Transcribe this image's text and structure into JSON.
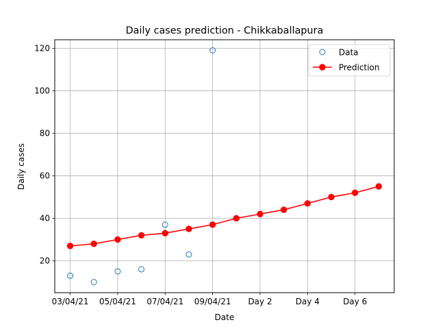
{
  "chart_data": {
    "type": "scatter",
    "title": "Daily cases prediction - Chikkaballapura",
    "xlabel": "Date",
    "ylabel": "Daily cases",
    "x_index_range": [
      -0.65,
      13.65
    ],
    "ylim": [
      5,
      124
    ],
    "grid": true,
    "legend_position": "top-right",
    "x_ticks": [
      {
        "index": 0,
        "label": "03/04/21"
      },
      {
        "index": 2,
        "label": "05/04/21"
      },
      {
        "index": 4,
        "label": "07/04/21"
      },
      {
        "index": 6,
        "label": "09/04/21"
      },
      {
        "index": 8,
        "label": "Day 2"
      },
      {
        "index": 10,
        "label": "Day 4"
      },
      {
        "index": 12,
        "label": "Day 6"
      }
    ],
    "y_ticks": [
      20,
      40,
      60,
      80,
      100,
      120
    ],
    "series": [
      {
        "name": "Data",
        "style": "markers",
        "color": "#1f77b4",
        "points": [
          {
            "x": 0,
            "y": 13
          },
          {
            "x": 1,
            "y": 10
          },
          {
            "x": 2,
            "y": 15
          },
          {
            "x": 3,
            "y": 16
          },
          {
            "x": 4,
            "y": 37
          },
          {
            "x": 5,
            "y": 23
          },
          {
            "x": 6,
            "y": 119
          }
        ]
      },
      {
        "name": "Prediction",
        "style": "line-markers",
        "color": "#ff0000",
        "points": [
          {
            "x": 0,
            "y": 27
          },
          {
            "x": 1,
            "y": 28
          },
          {
            "x": 2,
            "y": 30
          },
          {
            "x": 3,
            "y": 32
          },
          {
            "x": 4,
            "y": 33
          },
          {
            "x": 5,
            "y": 35
          },
          {
            "x": 6,
            "y": 37
          },
          {
            "x": 7,
            "y": 40
          },
          {
            "x": 8,
            "y": 42
          },
          {
            "x": 9,
            "y": 44
          },
          {
            "x": 10,
            "y": 47
          },
          {
            "x": 11,
            "y": 50
          },
          {
            "x": 12,
            "y": 52
          },
          {
            "x": 13,
            "y": 55
          }
        ]
      }
    ]
  }
}
